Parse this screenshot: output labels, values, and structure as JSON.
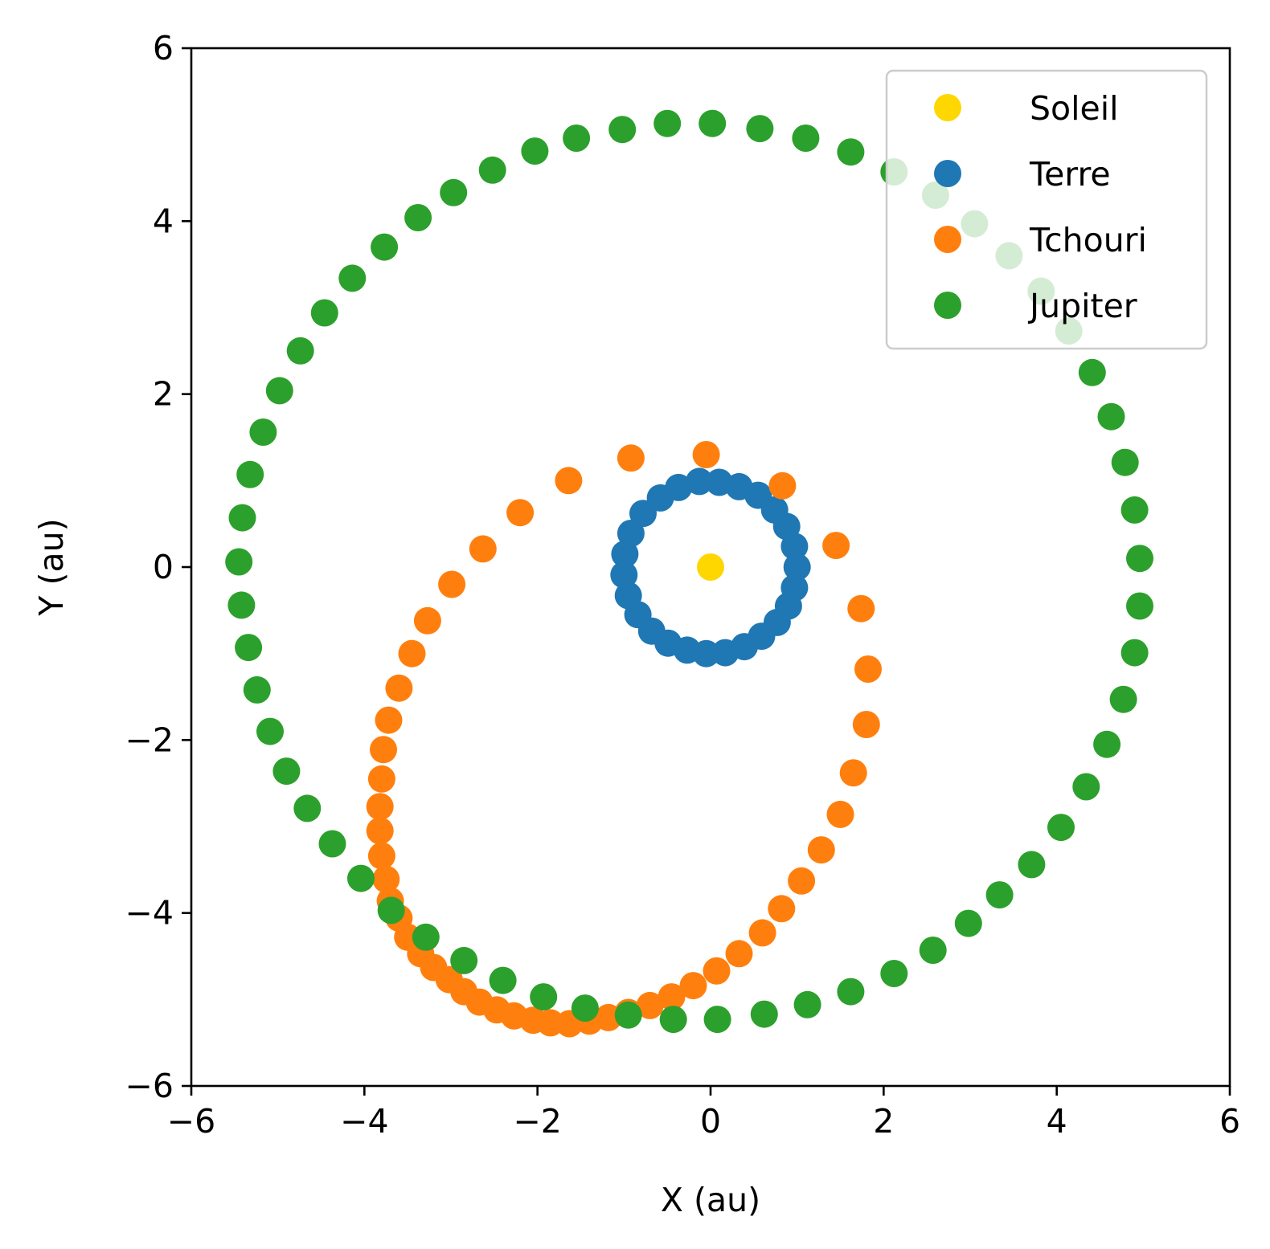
{
  "chart_data": {
    "type": "scatter",
    "xlabel": "X (au)",
    "ylabel": "Y (au)",
    "xlim": [
      -6,
      6
    ],
    "ylim": [
      -6,
      6
    ],
    "xticks": [
      -6,
      -4,
      -2,
      0,
      2,
      4,
      6
    ],
    "yticks": [
      -6,
      -4,
      -2,
      0,
      2,
      4,
      6
    ],
    "xtick_labels": [
      "−6",
      "−4",
      "−2",
      "0",
      "2",
      "4",
      "6"
    ],
    "ytick_labels": [
      "−6",
      "−4",
      "−2",
      "0",
      "2",
      "4",
      "6"
    ],
    "grid": false,
    "legend_position": "top-right",
    "series": [
      {
        "name": "Soleil",
        "color": "#ffd700",
        "points": [
          [
            0.0,
            0.0
          ]
        ]
      },
      {
        "name": "Terre",
        "color": "#1f77b4",
        "points": [
          [
            0.1,
            0.98
          ],
          [
            0.33,
            0.93
          ],
          [
            0.55,
            0.83
          ],
          [
            0.74,
            0.66
          ],
          [
            0.88,
            0.47
          ],
          [
            0.97,
            0.24
          ],
          [
            1.0,
            0.0
          ],
          [
            0.97,
            -0.24
          ],
          [
            0.9,
            -0.45
          ],
          [
            0.77,
            -0.64
          ],
          [
            0.59,
            -0.8
          ],
          [
            0.39,
            -0.92
          ],
          [
            0.17,
            -0.99
          ],
          [
            -0.05,
            -1.0
          ],
          [
            -0.27,
            -0.96
          ],
          [
            -0.49,
            -0.88
          ],
          [
            -0.68,
            -0.74
          ],
          [
            -0.84,
            -0.55
          ],
          [
            -0.95,
            -0.33
          ],
          [
            -1.0,
            -0.09
          ],
          [
            -0.99,
            0.15
          ],
          [
            -0.92,
            0.39
          ],
          [
            -0.78,
            0.62
          ],
          [
            -0.58,
            0.8
          ],
          [
            -0.37,
            0.92
          ],
          [
            -0.13,
            0.99
          ]
        ]
      },
      {
        "name": "Tchouri",
        "color": "#ff7f0e",
        "points": [
          [
            -0.05,
            1.3
          ],
          [
            0.83,
            0.94
          ],
          [
            1.45,
            0.25
          ],
          [
            1.74,
            -0.48
          ],
          [
            1.82,
            -1.18
          ],
          [
            1.8,
            -1.82
          ],
          [
            1.65,
            -2.38
          ],
          [
            1.5,
            -2.86
          ],
          [
            1.28,
            -3.27
          ],
          [
            1.05,
            -3.63
          ],
          [
            0.82,
            -3.95
          ],
          [
            0.6,
            -4.23
          ],
          [
            0.33,
            -4.47
          ],
          [
            0.07,
            -4.67
          ],
          [
            -0.2,
            -4.84
          ],
          [
            -0.45,
            -4.97
          ],
          [
            -0.7,
            -5.07
          ],
          [
            -0.95,
            -5.15
          ],
          [
            -1.18,
            -5.21
          ],
          [
            -1.4,
            -5.25
          ],
          [
            -1.63,
            -5.28
          ],
          [
            -1.85,
            -5.27
          ],
          [
            -2.05,
            -5.24
          ],
          [
            -2.27,
            -5.19
          ],
          [
            -2.47,
            -5.12
          ],
          [
            -2.67,
            -5.03
          ],
          [
            -2.85,
            -4.91
          ],
          [
            -3.02,
            -4.77
          ],
          [
            -3.2,
            -4.63
          ],
          [
            -3.35,
            -4.47
          ],
          [
            -3.5,
            -4.28
          ],
          [
            -3.6,
            -4.06
          ],
          [
            -3.7,
            -3.86
          ],
          [
            -3.75,
            -3.61
          ],
          [
            -3.8,
            -3.34
          ],
          [
            -3.82,
            -3.05
          ],
          [
            -3.82,
            -2.77
          ],
          [
            -3.8,
            -2.45
          ],
          [
            -3.78,
            -2.11
          ],
          [
            -3.72,
            -1.77
          ],
          [
            -3.6,
            -1.4
          ],
          [
            -3.45,
            -1.0
          ],
          [
            -3.27,
            -0.62
          ],
          [
            -2.99,
            -0.2
          ],
          [
            -2.63,
            0.21
          ],
          [
            -2.2,
            0.63
          ],
          [
            -1.64,
            1.0
          ],
          [
            -0.92,
            1.26
          ]
        ]
      },
      {
        "name": "Jupiter",
        "color": "#2ca02c",
        "points": [
          [
            0.02,
            5.13
          ],
          [
            0.57,
            5.07
          ],
          [
            1.1,
            4.96
          ],
          [
            1.62,
            4.8
          ],
          [
            2.12,
            4.57
          ],
          [
            2.6,
            4.3
          ],
          [
            3.05,
            3.97
          ],
          [
            3.45,
            3.6
          ],
          [
            3.82,
            3.19
          ],
          [
            4.14,
            2.73
          ],
          [
            4.41,
            2.25
          ],
          [
            4.63,
            1.74
          ],
          [
            4.79,
            1.21
          ],
          [
            4.9,
            0.66
          ],
          [
            4.96,
            0.1
          ],
          [
            4.96,
            -0.45
          ],
          [
            4.9,
            -0.99
          ],
          [
            4.77,
            -1.53
          ],
          [
            4.58,
            -2.05
          ],
          [
            4.34,
            -2.54
          ],
          [
            4.05,
            -3.01
          ],
          [
            3.71,
            -3.44
          ],
          [
            3.34,
            -3.79
          ],
          [
            2.98,
            -4.12
          ],
          [
            2.57,
            -4.43
          ],
          [
            2.12,
            -4.7
          ],
          [
            1.62,
            -4.91
          ],
          [
            1.12,
            -5.06
          ],
          [
            0.62,
            -5.17
          ],
          [
            0.08,
            -5.23
          ],
          [
            -0.43,
            -5.23
          ],
          [
            -0.95,
            -5.18
          ],
          [
            -1.45,
            -5.1
          ],
          [
            -1.93,
            -4.97
          ],
          [
            -2.4,
            -4.78
          ],
          [
            -2.85,
            -4.55
          ],
          [
            -3.29,
            -4.28
          ],
          [
            -3.69,
            -3.97
          ],
          [
            -4.04,
            -3.6
          ],
          [
            -4.37,
            -3.2
          ],
          [
            -4.66,
            -2.79
          ],
          [
            -4.9,
            -2.36
          ],
          [
            -5.09,
            -1.9
          ],
          [
            -5.24,
            -1.42
          ],
          [
            -5.34,
            -0.93
          ],
          [
            -5.42,
            -0.44
          ],
          [
            -5.45,
            0.06
          ],
          [
            -5.41,
            0.57
          ],
          [
            -5.32,
            1.07
          ],
          [
            -5.17,
            1.56
          ],
          [
            -4.98,
            2.04
          ],
          [
            -4.74,
            2.5
          ],
          [
            -4.46,
            2.94
          ],
          [
            -4.14,
            3.34
          ],
          [
            -3.77,
            3.7
          ],
          [
            -3.38,
            4.04
          ],
          [
            -2.97,
            4.33
          ],
          [
            -2.52,
            4.59
          ],
          [
            -2.03,
            4.81
          ],
          [
            -1.55,
            4.96
          ],
          [
            -1.02,
            5.06
          ],
          [
            -0.5,
            5.13
          ]
        ]
      }
    ]
  }
}
